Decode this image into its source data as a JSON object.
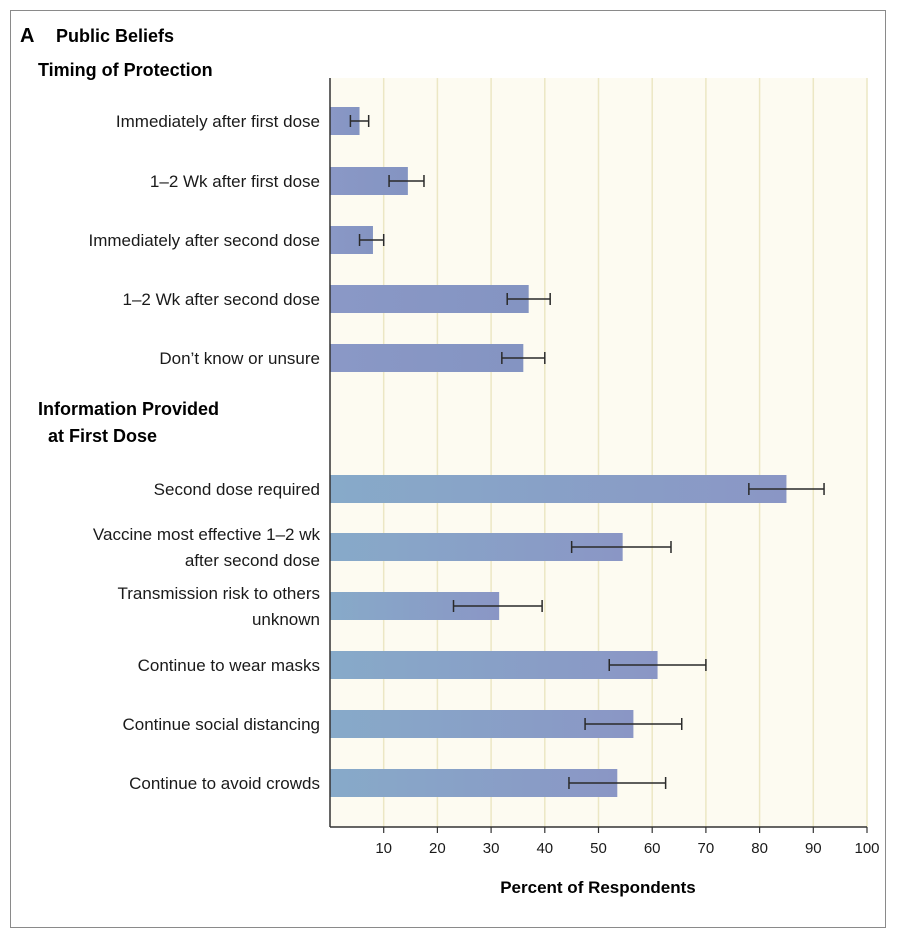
{
  "panel": {
    "letter": "A",
    "title": "Public Beliefs"
  },
  "colors": {
    "plot_bg": "#fdfbf1",
    "grid": "#ece7c4",
    "axis": "#333333",
    "bar_timing": "#8797c4",
    "bar_info_a": "#8797c4",
    "bar_info_b": "#86abc8",
    "error": "#2a2a2a"
  },
  "chart_data": {
    "type": "bar",
    "orientation": "horizontal",
    "xlabel": "Percent of Respondents",
    "xlim": [
      0,
      100
    ],
    "xticks": [
      10,
      20,
      30,
      40,
      50,
      60,
      70,
      80,
      90,
      100
    ],
    "grid": "vertical",
    "groups": [
      {
        "heading": [
          "Timing of Protection"
        ],
        "categories": [
          {
            "label": [
              "Immediately after first dose"
            ],
            "value": 5.5,
            "ci": [
              3.8,
              7.2
            ]
          },
          {
            "label": [
              "1–2 Wk after first dose"
            ],
            "value": 14.5,
            "ci": [
              11.0,
              17.5
            ]
          },
          {
            "label": [
              "Immediately after second dose"
            ],
            "value": 8.0,
            "ci": [
              5.5,
              10.0
            ]
          },
          {
            "label": [
              "1–2 Wk after second dose"
            ],
            "value": 37.0,
            "ci": [
              33.0,
              41.0
            ]
          },
          {
            "label": [
              "Don’t know or unsure"
            ],
            "value": 36.0,
            "ci": [
              32.0,
              40.0
            ]
          }
        ]
      },
      {
        "heading": [
          "Information Provided",
          "at First Dose"
        ],
        "categories": [
          {
            "label": [
              "Second dose required"
            ],
            "value": 85.0,
            "ci": [
              78.0,
              92.0
            ]
          },
          {
            "label": [
              "Vaccine most effective 1–2 wk",
              "after second dose"
            ],
            "value": 54.5,
            "ci": [
              45.0,
              63.5
            ]
          },
          {
            "label": [
              "Transmission risk to others",
              "unknown"
            ],
            "value": 31.5,
            "ci": [
              23.0,
              39.5
            ]
          },
          {
            "label": [
              "Continue to wear masks"
            ],
            "value": 61.0,
            "ci": [
              52.0,
              70.0
            ]
          },
          {
            "label": [
              "Continue social distancing"
            ],
            "value": 56.5,
            "ci": [
              47.5,
              65.5
            ]
          },
          {
            "label": [
              "Continue to avoid crowds"
            ],
            "value": 53.5,
            "ci": [
              44.5,
              62.5
            ]
          }
        ]
      }
    ]
  }
}
